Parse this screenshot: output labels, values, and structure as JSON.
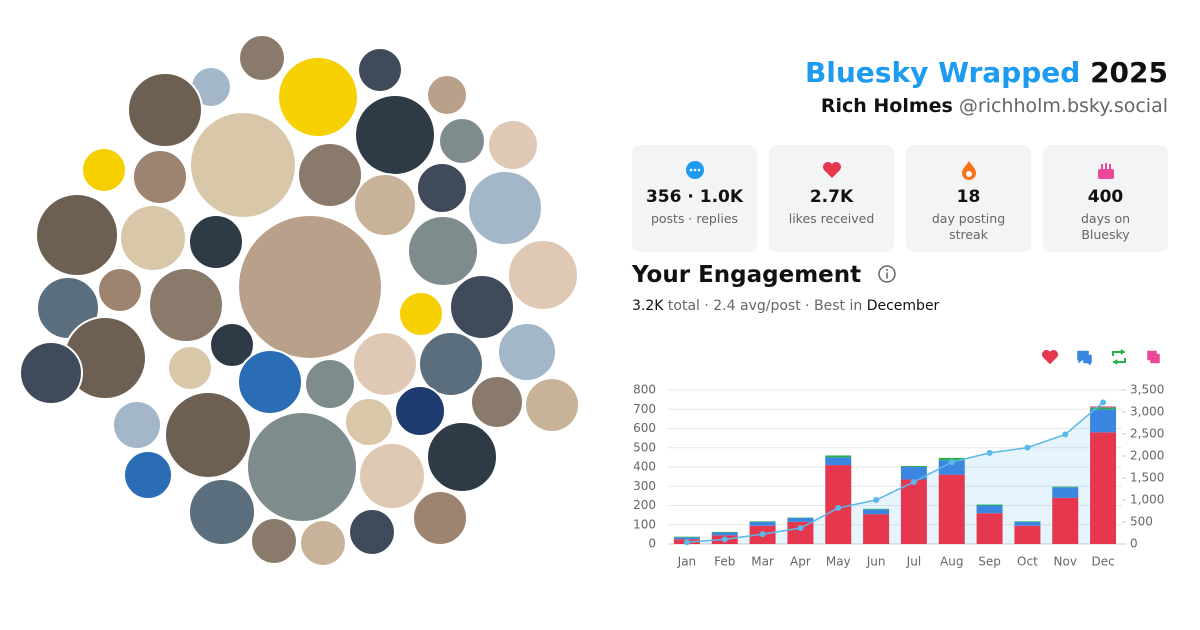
{
  "header": {
    "title": "Bluesky Wrapped",
    "year": "2025",
    "name": "Rich Holmes",
    "handle": "@richholm.bsky.social"
  },
  "stats": [
    {
      "value": "356 · 1.0K",
      "label": "posts · replies"
    },
    {
      "value": "2.7K",
      "label": "likes received"
    },
    {
      "value": "18",
      "label": "day posting streak"
    },
    {
      "value": "400",
      "label": "days on Bluesky"
    }
  ],
  "engagement": {
    "title": "Your Engagement",
    "total": "3.2K",
    "middle": "total · 2.4 avg/post · Best in",
    "best": "December"
  },
  "chart_data": {
    "type": "bar",
    "stacked": true,
    "grid": true,
    "categories": [
      "Jan",
      "Feb",
      "Mar",
      "Apr",
      "May",
      "Jun",
      "Jul",
      "Aug",
      "Sep",
      "Oct",
      "Nov",
      "Dec"
    ],
    "series": [
      {
        "color": "#e5384f",
        "values": [
          25,
          45,
          95,
          115,
          410,
          155,
          335,
          360,
          160,
          95,
          240,
          580
        ]
      },
      {
        "color": "#3a86e0",
        "values": [
          10,
          15,
          20,
          20,
          40,
          25,
          65,
          75,
          40,
          20,
          55,
          120
        ]
      },
      {
        "color": "#27b34a",
        "values": [
          3,
          3,
          3,
          2,
          10,
          3,
          5,
          12,
          5,
          3,
          3,
          10
        ]
      },
      {
        "color": "#ec4899",
        "values": [
          0,
          0,
          0,
          0,
          0,
          0,
          0,
          0,
          0,
          0,
          0,
          5
        ]
      },
      {
        "type": "line",
        "axis": "y2",
        "color": "#5ab8ea",
        "values": [
          40,
          105,
          225,
          360,
          820,
          1000,
          1410,
          1860,
          2070,
          2190,
          2490,
          3220
        ]
      }
    ],
    "ylim": [
      0,
      800
    ],
    "yticks": [
      0,
      100,
      200,
      300,
      400,
      500,
      600,
      700,
      800
    ],
    "y2lim": [
      0,
      3500
    ],
    "y2ticks": [
      0,
      500,
      {
        "value": 1000,
        "label": "1,000"
      },
      {
        "value": 1500,
        "label": "1,500"
      },
      {
        "value": 2000,
        "label": "2,000"
      },
      {
        "value": 2500,
        "label": "2,500"
      },
      {
        "value": 3000,
        "label": "3,000"
      },
      {
        "value": 3500,
        "label": "3,500"
      }
    ]
  }
}
